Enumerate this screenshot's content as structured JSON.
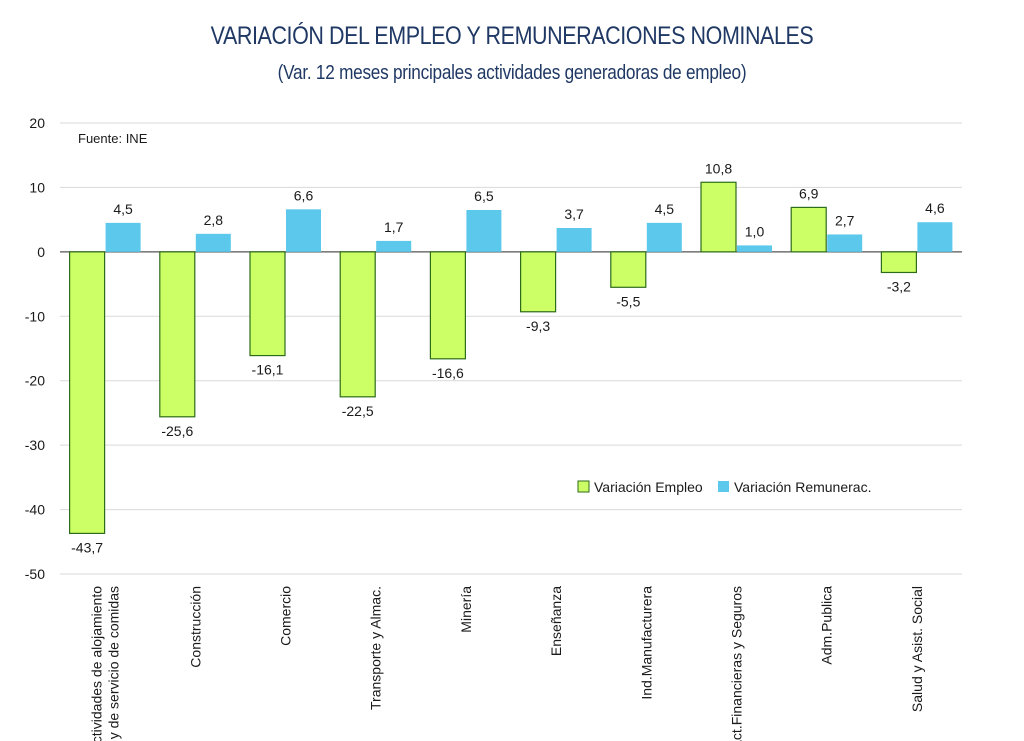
{
  "chart_data": {
    "type": "bar",
    "title": "VARIACIÓN DEL EMPLEO Y REMUNERACIONES NOMINALES",
    "subtitle": "(Var. 12 meses principales actividades generadoras de empleo)",
    "source_note": "Fuente: INE",
    "categories": [
      [
        "Actividades de alojamiento",
        "y de servicio de comidas"
      ],
      [
        "Construcción"
      ],
      [
        "Comercio"
      ],
      [
        "Transporte y Almac."
      ],
      [
        "Minería"
      ],
      [
        "Enseñanza"
      ],
      [
        "Ind.Manufacturera"
      ],
      [
        "Act.Financieras y Seguros"
      ],
      [
        "Adm.Publica"
      ],
      [
        "Salud y Asist. Social"
      ]
    ],
    "series": [
      {
        "name": "Variación Empleo",
        "color": "#ccff66",
        "stroke": "#2e6b1a",
        "values": [
          -43.7,
          -25.6,
          -16.1,
          -22.5,
          -16.6,
          -9.3,
          -5.5,
          10.8,
          6.9,
          -3.2
        ],
        "labels": [
          "-43,7",
          "-25,6",
          "-16,1",
          "-22,5",
          "-16,6",
          "-9,3",
          "-5,5",
          "10,8",
          "6,9",
          "-3,2"
        ]
      },
      {
        "name": "Variación Remunerac.",
        "color": "#5bc8ec",
        "stroke": "#5bc8ec",
        "values": [
          4.5,
          2.8,
          6.6,
          1.7,
          6.5,
          3.7,
          4.5,
          1.0,
          2.7,
          4.6
        ],
        "labels": [
          "4,5",
          "2,8",
          "6,6",
          "1,7",
          "6,5",
          "3,7",
          "4,5",
          "1,0",
          "2,7",
          "4,6"
        ]
      }
    ],
    "ylim": [
      -50,
      20
    ],
    "yticks": [
      20,
      10,
      0,
      -10,
      -20,
      -30,
      -40,
      -50
    ],
    "ytick_labels": [
      "20",
      "10",
      "0",
      "-10",
      "-20",
      "-30",
      "-40",
      "-50"
    ],
    "grid": true,
    "legend_position": "middle-right"
  }
}
